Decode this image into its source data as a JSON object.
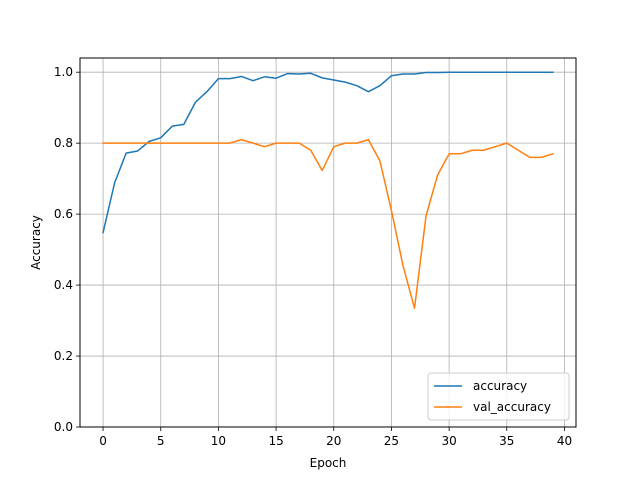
{
  "chart_data": {
    "type": "line",
    "title": "",
    "xlabel": "Epoch",
    "ylabel": "Accuracy",
    "xlim": [
      -2,
      41
    ],
    "ylim": [
      0,
      1.04
    ],
    "xticks": [
      0,
      5,
      10,
      15,
      20,
      25,
      30,
      35,
      40
    ],
    "yticks": [
      0.0,
      0.2,
      0.4,
      0.6,
      0.8,
      1.0
    ],
    "xtick_labels": [
      "0",
      "5",
      "10",
      "15",
      "20",
      "25",
      "30",
      "35",
      "40"
    ],
    "ytick_labels": [
      "0.0",
      "0.2",
      "0.4",
      "0.6",
      "0.8",
      "1.0"
    ],
    "grid": true,
    "legend_position": "lower-right",
    "x": [
      0,
      1,
      2,
      3,
      4,
      5,
      6,
      7,
      8,
      9,
      10,
      11,
      12,
      13,
      14,
      15,
      16,
      17,
      18,
      19,
      20,
      21,
      22,
      23,
      24,
      25,
      26,
      27,
      28,
      29,
      30,
      31,
      32,
      33,
      34,
      35,
      36,
      37,
      38,
      39
    ],
    "series": [
      {
        "name": "accuracy",
        "color": "#1f77b4",
        "values": [
          0.548,
          0.688,
          0.772,
          0.778,
          0.805,
          0.815,
          0.848,
          0.853,
          0.915,
          0.945,
          0.982,
          0.982,
          0.988,
          0.976,
          0.987,
          0.983,
          0.996,
          0.995,
          0.997,
          0.984,
          0.978,
          0.972,
          0.962,
          0.945,
          0.962,
          0.99,
          0.995,
          0.995,
          0.999,
          0.999,
          1.0,
          1.0,
          1.0,
          1.0,
          1.0,
          1.0,
          1.0,
          1.0,
          1.0,
          1.0
        ]
      },
      {
        "name": "val_accuracy",
        "color": "#ff7f0e",
        "values": [
          0.8,
          0.8,
          0.8,
          0.8,
          0.8,
          0.8,
          0.8,
          0.8,
          0.8,
          0.8,
          0.8,
          0.8,
          0.81,
          0.8,
          0.79,
          0.8,
          0.8,
          0.8,
          0.78,
          0.723,
          0.79,
          0.8,
          0.8,
          0.81,
          0.75,
          0.61,
          0.455,
          0.335,
          0.595,
          0.71,
          0.77,
          0.77,
          0.78,
          0.78,
          0.79,
          0.8,
          0.78,
          0.76,
          0.76,
          0.77
        ]
      }
    ]
  }
}
